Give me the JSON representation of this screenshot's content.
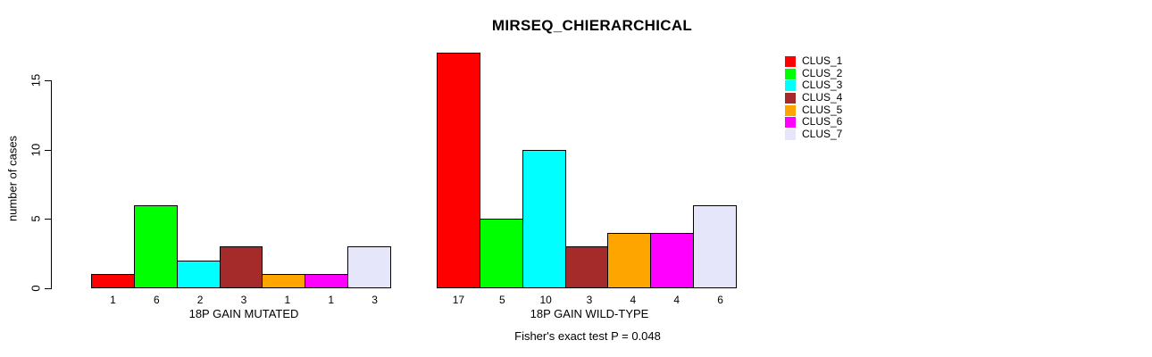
{
  "chart_data": {
    "type": "bar",
    "title": "MIRSEQ_CHIERARCHICAL",
    "ylabel": "number of cases",
    "xlabel": "",
    "ylim": [
      0,
      17
    ],
    "yticks": [
      0,
      5,
      10,
      15
    ],
    "grid": false,
    "legend_position": "right",
    "series_names": [
      "CLUS_1",
      "CLUS_2",
      "CLUS_3",
      "CLUS_4",
      "CLUS_5",
      "CLUS_6",
      "CLUS_7"
    ],
    "colors": [
      "#FF0000",
      "#00FF00",
      "#00FFFF",
      "#A52A2A",
      "#FFA500",
      "#FF00FF",
      "#E6E6FA"
    ],
    "groups": [
      {
        "label": "18P GAIN MUTATED",
        "values": [
          1,
          6,
          2,
          3,
          1,
          1,
          3
        ]
      },
      {
        "label": "18P GAIN WILD-TYPE",
        "values": [
          17,
          5,
          10,
          3,
          4,
          4,
          6
        ]
      }
    ],
    "annotation": "Fisher's exact test P = 0.048"
  }
}
